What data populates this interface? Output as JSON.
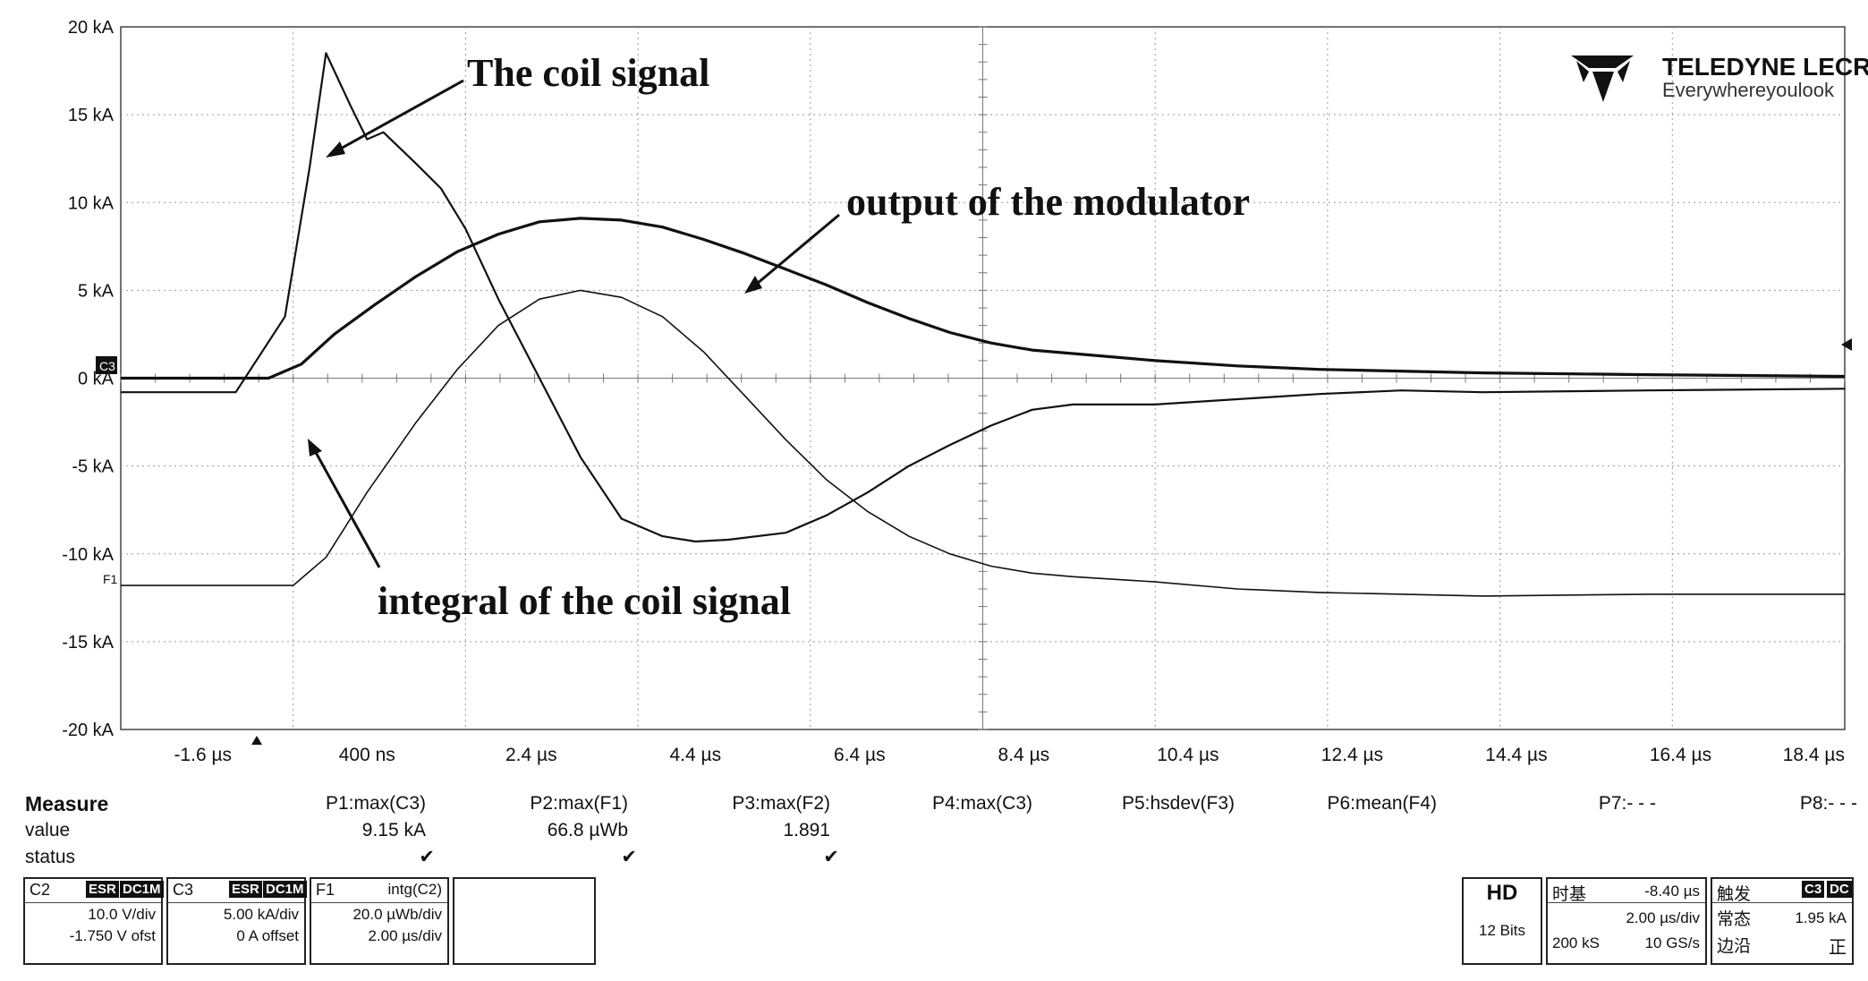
{
  "chart_data": {
    "type": "line",
    "xlabel": "",
    "ylabel": "",
    "x_unit": "µs",
    "xlim": [
      -2.6,
      18.4
    ],
    "ylim": [
      -20,
      20
    ],
    "x_tick_labels": [
      "-1.6 µs",
      "400 ns",
      "2.4 µs",
      "4.4 µs",
      "6.4 µs",
      "8.4 µs",
      "10.4 µs",
      "12.4 µs",
      "14.4 µs",
      "16.4 µs",
      "18.4 µs"
    ],
    "x_tick_values": [
      -1.6,
      0.4,
      2.4,
      4.4,
      6.4,
      8.4,
      10.4,
      12.4,
      14.4,
      16.4,
      18.4
    ],
    "y_tick_labels": [
      "20 kA",
      "15 kA",
      "10 kA",
      "5 kA",
      "0 kA",
      "-5 kA",
      "-10 kA",
      "-15 kA",
      "-20 kA"
    ],
    "y_tick_values": [
      20,
      15,
      10,
      5,
      0,
      -5,
      -10,
      -15,
      -20
    ],
    "grid": true,
    "series": [
      {
        "name": "",
        "role": "coil",
        "x": [
          -2.6,
          -1.2,
          -0.6,
          -0.3,
          -0.1,
          0.2,
          0.4,
          0.6,
          1.0,
          1.3,
          1.6,
          2.0,
          2.5,
          3.0,
          3.5,
          4.0,
          4.4,
          4.8,
          5.5,
          6.0,
          6.5,
          7.0,
          7.5,
          8.0,
          8.5,
          9.0,
          10.0,
          11.0,
          12.0,
          13.0,
          14.0,
          16.0,
          18.4
        ],
        "y": [
          -0.8,
          -0.8,
          3.5,
          12.0,
          18.5,
          15.5,
          13.6,
          14.0,
          12.2,
          10.8,
          8.5,
          4.5,
          0.0,
          -4.5,
          -8.0,
          -9.0,
          -9.3,
          -9.2,
          -8.8,
          -7.8,
          -6.5,
          -5.0,
          -3.8,
          -2.7,
          -1.8,
          -1.5,
          -1.5,
          -1.2,
          -0.9,
          -0.7,
          -0.8,
          -0.7,
          -0.6
        ]
      },
      {
        "name": "",
        "role": "modulator",
        "x": [
          -2.6,
          -0.8,
          -0.4,
          0.0,
          0.5,
          1.0,
          1.5,
          2.0,
          2.5,
          3.0,
          3.5,
          4.0,
          4.5,
          5.0,
          5.5,
          6.0,
          6.5,
          7.0,
          7.5,
          8.0,
          8.5,
          9.0,
          10.0,
          11.0,
          12.0,
          14.0,
          16.0,
          18.4
        ],
        "y": [
          0,
          0,
          0.8,
          2.5,
          4.2,
          5.8,
          7.2,
          8.2,
          8.9,
          9.1,
          9.0,
          8.6,
          7.9,
          7.1,
          6.2,
          5.3,
          4.3,
          3.4,
          2.6,
          2.0,
          1.6,
          1.4,
          1.0,
          0.7,
          0.5,
          0.3,
          0.2,
          0.1
        ]
      },
      {
        "name": "",
        "role": "integral",
        "x": [
          -2.6,
          -0.5,
          -0.1,
          0.4,
          1.0,
          1.5,
          2.0,
          2.5,
          3.0,
          3.5,
          4.0,
          4.5,
          5.0,
          5.5,
          6.0,
          6.5,
          7.0,
          7.5,
          8.0,
          8.5,
          9.0,
          10.0,
          11.0,
          12.0,
          14.0,
          16.0,
          18.4
        ],
        "y": [
          -11.8,
          -11.8,
          -10.2,
          -6.5,
          -2.5,
          0.5,
          3.0,
          4.5,
          5.0,
          4.6,
          3.5,
          1.5,
          -1.0,
          -3.5,
          -5.8,
          -7.6,
          -9.0,
          -10.0,
          -10.7,
          -11.1,
          -11.3,
          -11.6,
          -12.0,
          -12.2,
          -12.4,
          -12.3,
          -12.3
        ]
      }
    ],
    "annotations": [
      {
        "text": "The coil signal",
        "target": "coil"
      },
      {
        "text": "output of the modulator",
        "target": "modulator"
      },
      {
        "text": "integral of the coil signal",
        "target": "integral"
      }
    ]
  },
  "scope": {
    "logo_brand": "TELEDYNE LECROY",
    "logo_tagline": "Everywhereyoulook",
    "marker_c3": "C3",
    "marker_f1": "F1"
  },
  "measure": {
    "title": "Measure",
    "row_value": "value",
    "row_status": "status",
    "params": [
      "P1:max(C3)",
      "P2:max(F1)",
      "P3:max(F2)",
      "P4:max(C3)",
      "P5:hsdev(F3)",
      "P6:mean(F4)",
      "P7:- - -",
      "P8:- - -"
    ],
    "values": [
      "9.15 kA",
      "66.8 µWb",
      "1.891",
      "",
      "",
      "",
      "",
      ""
    ],
    "status": [
      "✔",
      "✔",
      "✔",
      "",
      "",
      "",
      "",
      ""
    ]
  },
  "channels": {
    "c2": {
      "name": "C2",
      "badge1": "ESR",
      "badge2": "DC1M",
      "line1": "10.0 V/div",
      "line2": "-1.750 V ofst"
    },
    "c3": {
      "name": "C3",
      "badge1": "ESR",
      "badge2": "DC1M",
      "line1": "5.00 kA/div",
      "line2": "0 A offset"
    },
    "f1": {
      "name": "F1",
      "func": "intg(C2)",
      "line1": "20.0 µWb/div",
      "line2": "2.00 µs/div"
    },
    "hd": {
      "title": "HD",
      "bits": "12 Bits"
    },
    "timebase": {
      "label": "时基",
      "delay": "-8.40 µs",
      "rate": "2.00 µs/div",
      "samples": "200 kS",
      "srate": "10 GS/s"
    },
    "trigger": {
      "label": "触发",
      "badge1": "C3",
      "badge2": "DC",
      "mode": "常态",
      "level": "1.95 kA",
      "edge_label": "边沿",
      "edge": "正"
    }
  }
}
